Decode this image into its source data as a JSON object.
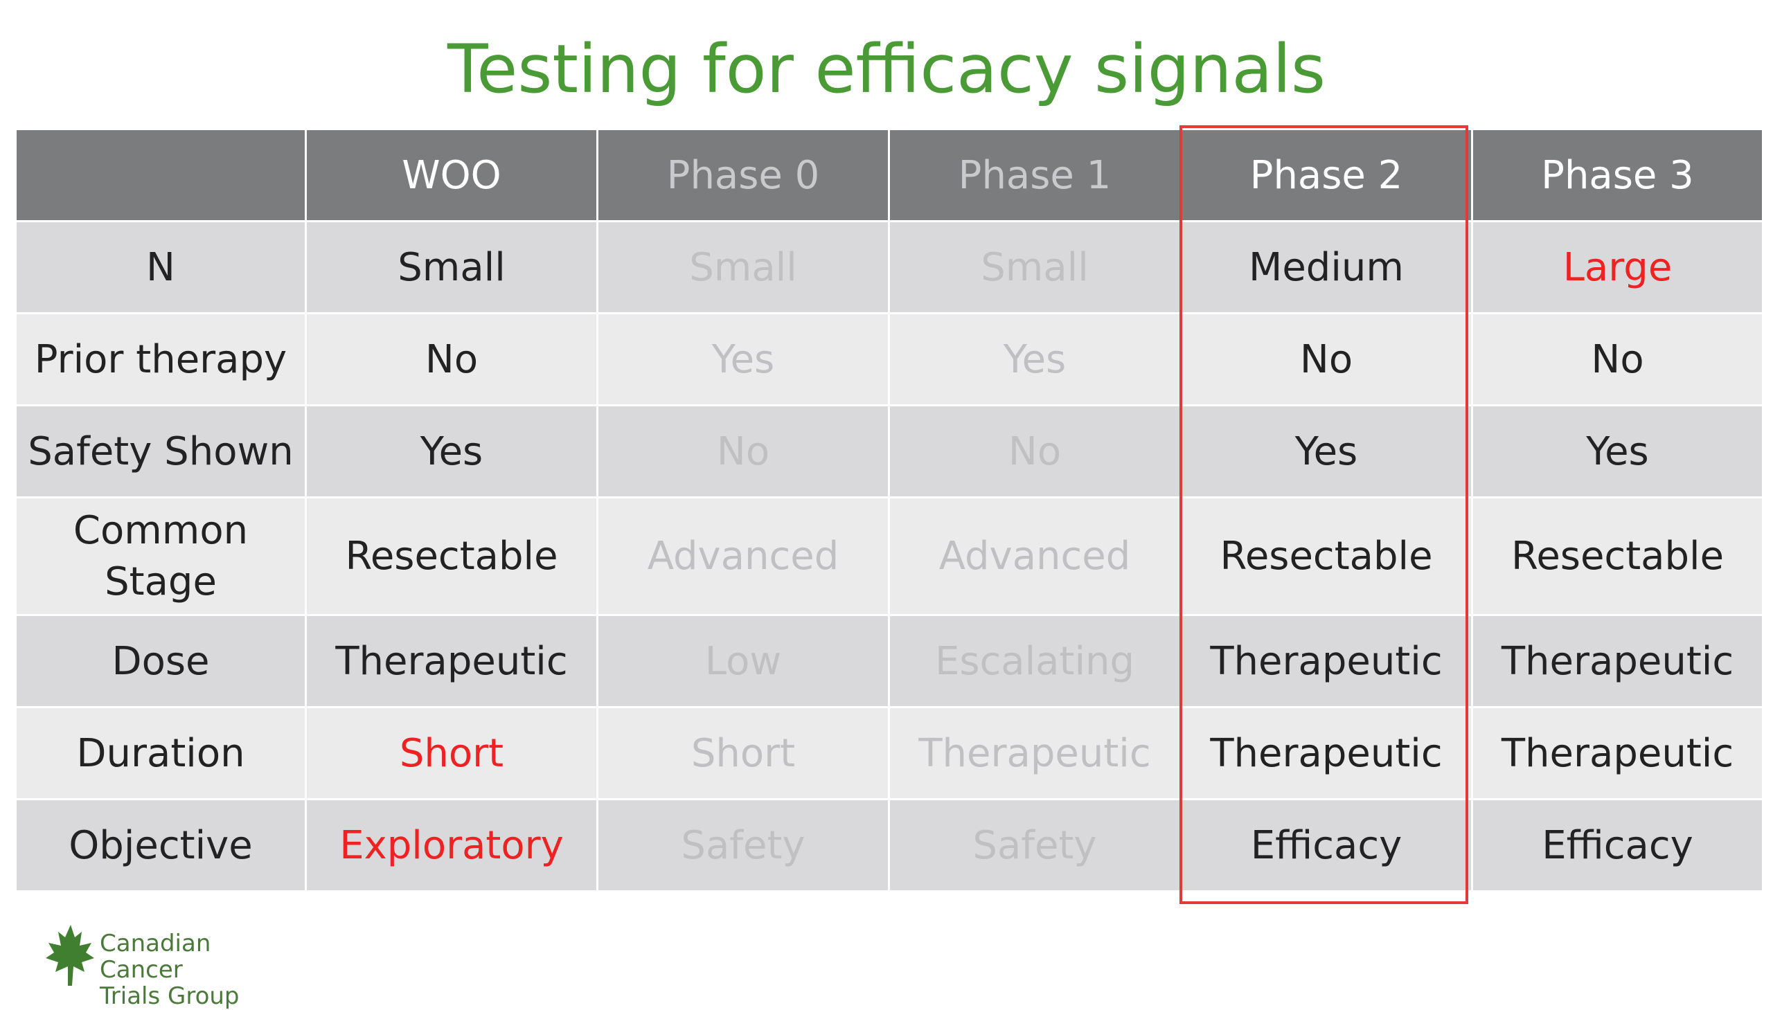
{
  "title": "Testing for efficacy signals",
  "table": {
    "headers": [
      "",
      "WOO",
      "Phase 0",
      "Phase 1",
      "Phase 2",
      "Phase 3"
    ],
    "rows": [
      {
        "label": "N",
        "cells": [
          "Small",
          "Small",
          "Small",
          "Medium",
          "Large"
        ]
      },
      {
        "label": "Prior therapy",
        "cells": [
          "No",
          "Yes",
          "Yes",
          "No",
          "No"
        ]
      },
      {
        "label": "Safety Shown",
        "cells": [
          "Yes",
          "No",
          "No",
          "Yes",
          "Yes"
        ]
      },
      {
        "label_line1": "Common",
        "label_line2": "Stage",
        "cells": [
          "Resectable",
          "Advanced",
          "Advanced",
          "Resectable",
          "Resectable"
        ]
      },
      {
        "label": "Dose",
        "cells": [
          "Therapeutic",
          "Low",
          "Escalating",
          "Therapeutic",
          "Therapeutic"
        ]
      },
      {
        "label": "Duration",
        "cells": [
          "Short",
          "Short",
          "Therapeutic",
          "Therapeutic",
          "Therapeutic"
        ]
      },
      {
        "label": "Objective",
        "cells": [
          "Exploratory",
          "Safety",
          "Safety",
          "Efficacy",
          "Efficacy"
        ]
      }
    ],
    "highlighted_column": "Phase 2"
  },
  "logo": {
    "line1": "Canadian Cancer",
    "line2": "Trials Group",
    "icon": "maple-leaf-icon"
  },
  "colors": {
    "title": "#4a9a36",
    "header_bg": "#7b7c7e",
    "highlight_border": "#e03a3a",
    "emphasis_text": "#ee2222",
    "dim_text": "#c0c0c2"
  }
}
